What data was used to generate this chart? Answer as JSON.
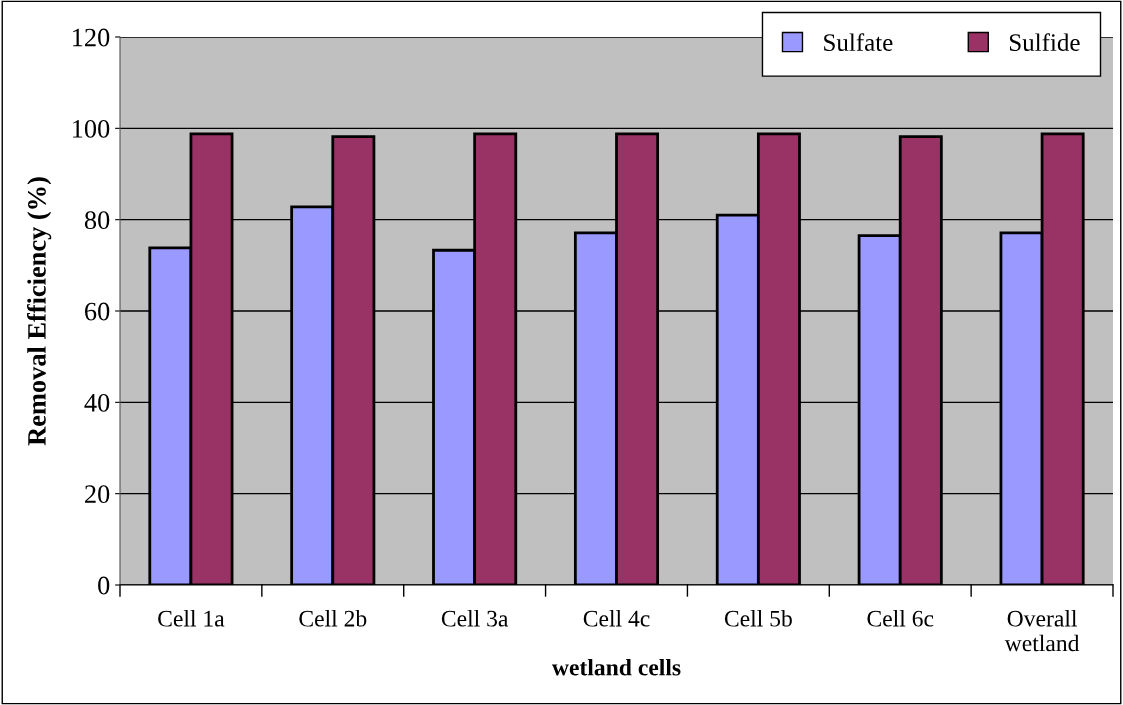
{
  "chart_data": {
    "type": "bar",
    "xlabel": "wetland cells",
    "ylabel": "Removal Efficiency (%)",
    "categories": [
      "Cell 1a",
      "Cell 2b",
      "Cell 3a",
      "Cell 4c",
      "Cell 5b",
      "Cell 6c",
      "Overall\nwetland"
    ],
    "series": [
      {
        "name": "Sulfate",
        "color": "#9999ff",
        "values": [
          73.8,
          82.8,
          73.3,
          77.1,
          81.0,
          76.5,
          77.1
        ]
      },
      {
        "name": "Sulfide",
        "color": "#993366",
        "values": [
          98.8,
          98.2,
          98.8,
          98.8,
          98.8,
          98.2,
          98.8
        ]
      }
    ],
    "ylim": [
      0,
      120
    ],
    "yticks": [
      0,
      20,
      40,
      60,
      80,
      100,
      120
    ],
    "grid": "y",
    "legend": "top right"
  }
}
